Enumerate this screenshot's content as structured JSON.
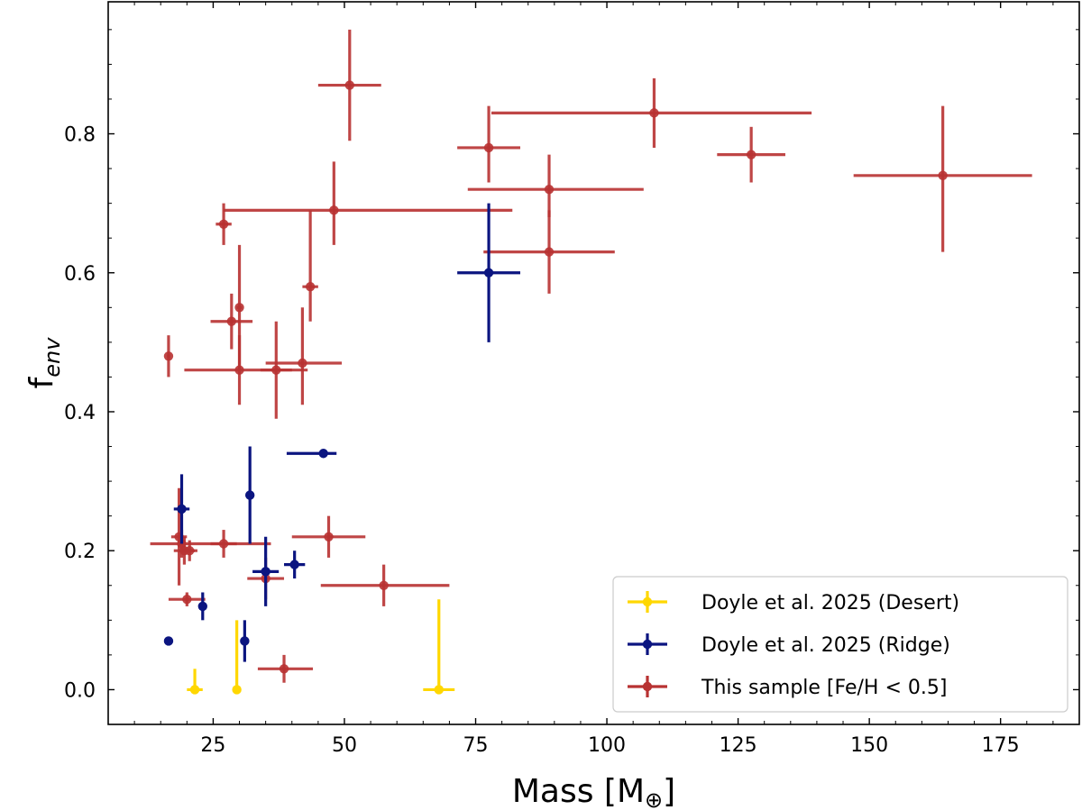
{
  "chart_data": {
    "type": "scatter",
    "title": "",
    "xlabel": "Mass [M",
    "xlabel_symbol": "⊕",
    "xlabel_close": "]",
    "ylabel_main": "f",
    "ylabel_sub": "env",
    "xlim": [
      5,
      190
    ],
    "ylim": [
      -0.05,
      0.99
    ],
    "xticks": [
      25,
      50,
      75,
      100,
      125,
      150,
      175
    ],
    "yticks": [
      0.0,
      0.2,
      0.4,
      0.6,
      0.8
    ],
    "ytick_labels": [
      "0.0",
      "0.2",
      "0.4",
      "0.6",
      "0.8"
    ],
    "legend_position": "lower-right",
    "series": [
      {
        "name": "Doyle et al. 2025 (Desert)",
        "color": "#FFD700",
        "points": [
          {
            "x": 21.5,
            "y": 0.0,
            "xerr": [
              1.5,
              1.5
            ],
            "yerr": [
              0.0,
              0.03
            ]
          },
          {
            "x": 29.5,
            "y": 0.0,
            "xerr": [
              0.2,
              0.2
            ],
            "yerr": [
              0.0,
              0.1
            ]
          },
          {
            "x": 68.0,
            "y": 0.0,
            "xerr": [
              3.0,
              3.0
            ],
            "yerr": [
              0.0,
              0.13
            ]
          }
        ]
      },
      {
        "name": "Doyle et al. 2025 (Ridge)",
        "color": "#0B1580",
        "points": [
          {
            "x": 16.5,
            "y": 0.07,
            "xerr": [
              0.8,
              0.8
            ],
            "yerr": [
              0.003,
              0.003
            ]
          },
          {
            "x": 23.0,
            "y": 0.12,
            "xerr": [
              0.6,
              0.6
            ],
            "yerr": [
              0.02,
              0.02
            ]
          },
          {
            "x": 31.0,
            "y": 0.07,
            "xerr": [
              0.8,
              0.8
            ],
            "yerr": [
              0.03,
              0.03
            ]
          },
          {
            "x": 19.0,
            "y": 0.26,
            "xerr": [
              1.5,
              1.5
            ],
            "yerr": [
              0.05,
              0.05
            ]
          },
          {
            "x": 32.0,
            "y": 0.28,
            "xerr": [
              0.6,
              0.6
            ],
            "yerr": [
              0.07,
              0.07
            ]
          },
          {
            "x": 35.0,
            "y": 0.17,
            "xerr": [
              2.5,
              2.5
            ],
            "yerr": [
              0.05,
              0.05
            ]
          },
          {
            "x": 40.5,
            "y": 0.18,
            "xerr": [
              2.0,
              2.0
            ],
            "yerr": [
              0.02,
              0.02
            ]
          },
          {
            "x": 46.0,
            "y": 0.34,
            "xerr": [
              7.0,
              2.5
            ],
            "yerr": [
              0.005,
              0.005
            ]
          },
          {
            "x": 77.5,
            "y": 0.6,
            "xerr": [
              6.0,
              6.0
            ],
            "yerr": [
              0.1,
              0.1
            ]
          }
        ]
      },
      {
        "name": "This sample [Fe/H < 0.5]",
        "color": "#B83232",
        "points": [
          {
            "x": 16.5,
            "y": 0.48,
            "xerr": [
              0.3,
              0.3
            ],
            "yerr": [
              0.03,
              0.03
            ]
          },
          {
            "x": 27.0,
            "y": 0.67,
            "xerr": [
              1.5,
              1.5
            ],
            "yerr": [
              0.03,
              0.03
            ]
          },
          {
            "x": 28.5,
            "y": 0.53,
            "xerr": [
              4.0,
              4.0
            ],
            "yerr": [
              0.04,
              0.04
            ]
          },
          {
            "x": 30.0,
            "y": 0.55,
            "xerr": [
              0.5,
              0.5
            ],
            "yerr": [
              0.09,
              0.09
            ]
          },
          {
            "x": 30.0,
            "y": 0.46,
            "xerr": [
              10.5,
              13.0
            ],
            "yerr": [
              0.05,
              0.05
            ]
          },
          {
            "x": 37.0,
            "y": 0.46,
            "xerr": [
              3.0,
              3.0
            ],
            "yerr": [
              0.07,
              0.07
            ]
          },
          {
            "x": 42.0,
            "y": 0.47,
            "xerr": [
              7.0,
              7.5
            ],
            "yerr": [
              0.06,
              0.08
            ]
          },
          {
            "x": 43.5,
            "y": 0.58,
            "xerr": [
              1.5,
              1.5
            ],
            "yerr": [
              0.05,
              0.11
            ]
          },
          {
            "x": 48.0,
            "y": 0.69,
            "xerr": [
              21.0,
              34.0
            ],
            "yerr": [
              0.05,
              0.07
            ]
          },
          {
            "x": 51.0,
            "y": 0.87,
            "xerr": [
              6.0,
              6.0
            ],
            "yerr": [
              0.08,
              0.08
            ]
          },
          {
            "x": 77.5,
            "y": 0.78,
            "xerr": [
              6.0,
              6.0
            ],
            "yerr": [
              0.05,
              0.06
            ]
          },
          {
            "x": 89.0,
            "y": 0.72,
            "xerr": [
              15.5,
              18.0
            ],
            "yerr": [
              0.04,
              0.05
            ]
          },
          {
            "x": 89.0,
            "y": 0.63,
            "xerr": [
              12.5,
              12.5
            ],
            "yerr": [
              0.06,
              0.06
            ]
          },
          {
            "x": 109.0,
            "y": 0.83,
            "xerr": [
              31.0,
              30.0
            ],
            "yerr": [
              0.05,
              0.05
            ]
          },
          {
            "x": 127.5,
            "y": 0.77,
            "xerr": [
              6.5,
              6.5
            ],
            "yerr": [
              0.04,
              0.04
            ]
          },
          {
            "x": 164.0,
            "y": 0.74,
            "xerr": [
              17.0,
              17.0
            ],
            "yerr": [
              0.11,
              0.1
            ]
          },
          {
            "x": 18.5,
            "y": 0.22,
            "xerr": [
              1.5,
              1.5
            ],
            "yerr": [
              0.07,
              0.07
            ]
          },
          {
            "x": 19.0,
            "y": 0.21,
            "xerr": [
              6.0,
              17.0
            ],
            "yerr": [
              0.02,
              0.02
            ]
          },
          {
            "x": 19.5,
            "y": 0.2,
            "xerr": [
              2.0,
              2.0
            ],
            "yerr": [
              0.02,
              0.02
            ]
          },
          {
            "x": 20.5,
            "y": 0.2,
            "xerr": [
              1.5,
              1.5
            ],
            "yerr": [
              0.015,
              0.015
            ]
          },
          {
            "x": 20.0,
            "y": 0.13,
            "xerr": [
              3.5,
              3.5
            ],
            "yerr": [
              0.01,
              0.01
            ]
          },
          {
            "x": 27.0,
            "y": 0.21,
            "xerr": [
              2.5,
              2.5
            ],
            "yerr": [
              0.02,
              0.02
            ]
          },
          {
            "x": 35.0,
            "y": 0.16,
            "xerr": [
              3.5,
              3.5
            ],
            "yerr": [
              0.03,
              0.03
            ]
          },
          {
            "x": 38.5,
            "y": 0.03,
            "xerr": [
              5.0,
              5.5
            ],
            "yerr": [
              0.02,
              0.02
            ]
          },
          {
            "x": 47.0,
            "y": 0.22,
            "xerr": [
              7.0,
              7.0
            ],
            "yerr": [
              0.03,
              0.03
            ]
          },
          {
            "x": 57.5,
            "y": 0.15,
            "xerr": [
              12.0,
              12.5
            ],
            "yerr": [
              0.03,
              0.03
            ]
          }
        ]
      }
    ]
  }
}
